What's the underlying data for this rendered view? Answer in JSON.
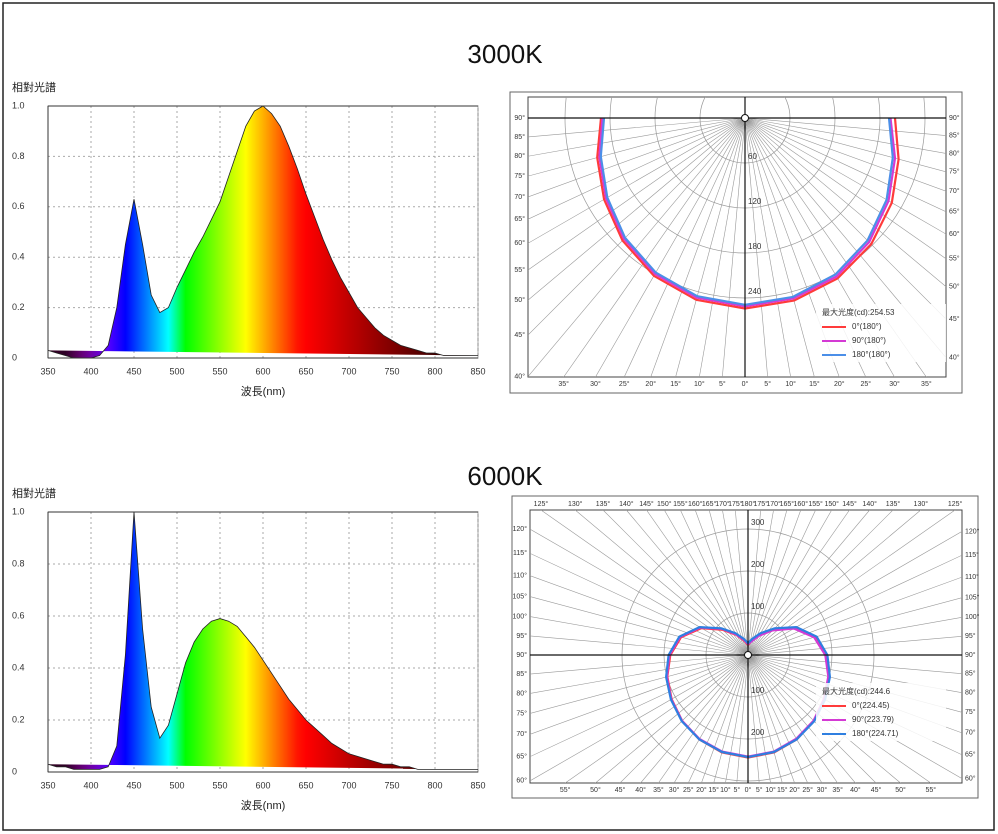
{
  "headings": [
    "3000K",
    "6000K"
  ],
  "chart_data": [
    {
      "type": "area",
      "ylabel": "相對光譜",
      "xlabel": "波長(nm)",
      "x": [
        350,
        360,
        370,
        380,
        390,
        400,
        410,
        420,
        430,
        440,
        450,
        460,
        470,
        480,
        490,
        500,
        510,
        520,
        530,
        540,
        550,
        560,
        570,
        580,
        590,
        600,
        610,
        620,
        630,
        640,
        650,
        660,
        670,
        680,
        690,
        700,
        710,
        720,
        730,
        740,
        750,
        760,
        770,
        780,
        790,
        800,
        810,
        820,
        830,
        840,
        850
      ],
      "values": [
        0.03,
        0.02,
        0.01,
        0,
        0,
        0,
        0.01,
        0.05,
        0.2,
        0.45,
        0.63,
        0.45,
        0.25,
        0.18,
        0.2,
        0.28,
        0.35,
        0.42,
        0.48,
        0.55,
        0.62,
        0.72,
        0.82,
        0.92,
        0.98,
        1.0,
        0.97,
        0.92,
        0.84,
        0.75,
        0.65,
        0.56,
        0.47,
        0.39,
        0.32,
        0.26,
        0.2,
        0.16,
        0.12,
        0.09,
        0.07,
        0.05,
        0.04,
        0.03,
        0.02,
        0.02,
        0.01,
        0.01,
        0.01,
        0.01,
        0.01
      ],
      "xlim": [
        350,
        850
      ],
      "xticks": [
        350,
        400,
        450,
        500,
        550,
        600,
        650,
        700,
        750,
        800,
        850
      ],
      "ylim": [
        0,
        1.0
      ],
      "yticks": [
        0,
        0.2,
        0.4,
        0.6,
        0.8,
        {
          "value": 1.0,
          "label": "1.0"
        }
      ],
      "grid": true
    },
    {
      "type": "polar",
      "legend_title": "最大光度(cd):254.53",
      "angles": [
        -90,
        -75,
        -60,
        -45,
        -30,
        -15,
        0,
        15,
        30,
        45,
        60,
        75,
        90
      ],
      "series": [
        {
          "name": "0°(180°)",
          "color": "#ff3b3b",
          "values": [
            192,
            204,
            217,
            231,
            243,
            251,
            254,
            252,
            247,
            238,
            226,
            212,
            200
          ]
        },
        {
          "name": "90°(180°)",
          "color": "#d43ad4",
          "values": [
            190,
            201,
            214,
            228,
            240,
            248,
            251,
            249,
            244,
            234,
            221,
            207,
            194
          ]
        },
        {
          "name": "180°(180°)",
          "color": "#4b8fe8",
          "values": [
            188,
            199,
            212,
            226,
            238,
            246,
            249,
            247,
            241,
            231,
            218,
            204,
            192
          ]
        }
      ],
      "rlim": [
        0,
        300
      ],
      "rticks": [
        60,
        120,
        180,
        240
      ],
      "angle_ticks": [
        {
          "value": 0,
          "label": "0°"
        },
        {
          "value": 5,
          "label": "5°"
        },
        {
          "value": 10,
          "label": "10°"
        },
        {
          "value": 15,
          "label": "15°"
        },
        {
          "value": 20,
          "label": "20°"
        },
        {
          "value": 25,
          "label": "25°"
        },
        {
          "value": 30,
          "label": "30°"
        },
        {
          "value": 35,
          "label": "35°"
        },
        {
          "value": 40,
          "label": "40°"
        },
        {
          "value": 45,
          "label": "45°"
        },
        {
          "value": 50,
          "label": "50°"
        },
        {
          "value": 55,
          "label": "55°"
        },
        {
          "value": 60,
          "label": "60°"
        },
        {
          "value": 65,
          "label": "65°"
        },
        {
          "value": 70,
          "label": "70°"
        },
        {
          "value": 75,
          "label": "75°"
        },
        {
          "value": 80,
          "label": "80°"
        },
        {
          "value": 85,
          "label": "85°"
        },
        {
          "value": 90,
          "label": "90°"
        }
      ]
    },
    {
      "type": "area",
      "ylabel": "相對光譜",
      "xlabel": "波長(nm)",
      "x": [
        350,
        360,
        370,
        380,
        390,
        400,
        410,
        420,
        430,
        440,
        450,
        460,
        470,
        480,
        490,
        500,
        510,
        520,
        530,
        540,
        550,
        560,
        570,
        580,
        590,
        600,
        610,
        620,
        630,
        640,
        650,
        660,
        670,
        680,
        690,
        700,
        710,
        720,
        730,
        740,
        750,
        760,
        770,
        780,
        790,
        800,
        810,
        820,
        830,
        840,
        850
      ],
      "values": [
        0.03,
        0.02,
        0.02,
        0.01,
        0.01,
        0.01,
        0.01,
        0.02,
        0.1,
        0.45,
        1.0,
        0.55,
        0.25,
        0.13,
        0.18,
        0.3,
        0.42,
        0.5,
        0.55,
        0.58,
        0.59,
        0.58,
        0.56,
        0.52,
        0.48,
        0.43,
        0.38,
        0.33,
        0.28,
        0.24,
        0.2,
        0.17,
        0.14,
        0.11,
        0.09,
        0.07,
        0.06,
        0.05,
        0.04,
        0.03,
        0.03,
        0.02,
        0.02,
        0.01,
        0.01,
        0.01,
        0.01,
        0.01,
        0.01,
        0.01,
        0.01
      ],
      "xlim": [
        350,
        850
      ],
      "xticks": [
        350,
        400,
        450,
        500,
        550,
        600,
        650,
        700,
        750,
        800,
        850
      ],
      "ylim": [
        0,
        1.0
      ],
      "yticks": [
        0,
        0.2,
        0.4,
        0.6,
        0.8,
        {
          "value": 1.0,
          "label": "1.0"
        }
      ],
      "grid": true
    },
    {
      "type": "polar",
      "legend_title": "最大光度(cd):244.6",
      "angles": [
        -180,
        -165,
        -150,
        -135,
        -120,
        -105,
        -90,
        -75,
        -60,
        -45,
        -30,
        -15,
        0,
        15,
        30,
        45,
        60,
        75,
        90,
        105,
        120,
        135,
        150,
        165,
        180
      ],
      "series": [
        {
          "name": "0°(224.45)",
          "color": "#ff3b3b",
          "values": [
            24,
            35,
            55,
            85,
            128,
            165,
            185,
            199,
            210,
            222,
            232,
            240,
            244,
            240,
            232,
            222,
            210,
            199,
            185,
            165,
            128,
            85,
            55,
            35,
            24
          ]
        },
        {
          "name": "90°(223.79)",
          "color": "#d43ad4",
          "values": [
            26,
            37,
            57,
            88,
            131,
            167,
            187,
            200,
            211,
            222,
            231,
            238,
            242,
            238,
            230,
            221,
            209,
            198,
            184,
            163,
            126,
            83,
            53,
            34,
            26
          ]
        },
        {
          "name": "180°(224.71)",
          "color": "#2f7fe0",
          "values": [
            28,
            40,
            60,
            90,
            133,
            169,
            189,
            202,
            212,
            223,
            232,
            239,
            243,
            239,
            232,
            223,
            212,
            202,
            189,
            169,
            133,
            90,
            60,
            40,
            28
          ]
        }
      ],
      "rlim": [
        0,
        300
      ],
      "rticks": [
        100,
        200,
        300
      ],
      "angle_ticks": [
        {
          "value": 0,
          "label": "0°"
        },
        {
          "value": 5,
          "label": "5°"
        },
        {
          "value": 10,
          "label": "10°"
        },
        {
          "value": 15,
          "label": "15°"
        },
        {
          "value": 20,
          "label": "20°"
        },
        {
          "value": 25,
          "label": "25°"
        },
        {
          "value": 30,
          "label": "30°"
        },
        {
          "value": 35,
          "label": "35°"
        },
        {
          "value": 40,
          "label": "40°"
        },
        {
          "value": 45,
          "label": "45°"
        },
        {
          "value": 50,
          "label": "50°"
        },
        {
          "value": 55,
          "label": "55°"
        },
        {
          "value": 60,
          "label": "60°"
        },
        {
          "value": 65,
          "label": "65°"
        },
        {
          "value": 70,
          "label": "70°"
        },
        {
          "value": 75,
          "label": "75°"
        },
        {
          "value": 80,
          "label": "80°"
        },
        {
          "value": 85,
          "label": "85°"
        },
        {
          "value": 90,
          "label": "90°"
        },
        {
          "value": 95,
          "label": "95°"
        },
        {
          "value": 100,
          "label": "100°"
        },
        {
          "value": 105,
          "label": "105°"
        },
        {
          "value": 110,
          "label": "110°"
        },
        {
          "value": 115,
          "label": "115°"
        },
        {
          "value": 120,
          "label": "120°"
        },
        {
          "value": 125,
          "label": "125°"
        },
        {
          "value": 130,
          "label": "130°"
        },
        {
          "value": 135,
          "label": "135°"
        },
        {
          "value": 140,
          "label": "140°"
        },
        {
          "value": 145,
          "label": "145°"
        },
        {
          "value": 150,
          "label": "150°"
        },
        {
          "value": 155,
          "label": "155°"
        },
        {
          "value": 160,
          "label": "160°"
        },
        {
          "value": 165,
          "label": "165°"
        },
        {
          "value": 170,
          "label": "170°"
        },
        {
          "value": 175,
          "label": "175°"
        },
        {
          "value": 180,
          "label": "180°"
        }
      ]
    }
  ]
}
